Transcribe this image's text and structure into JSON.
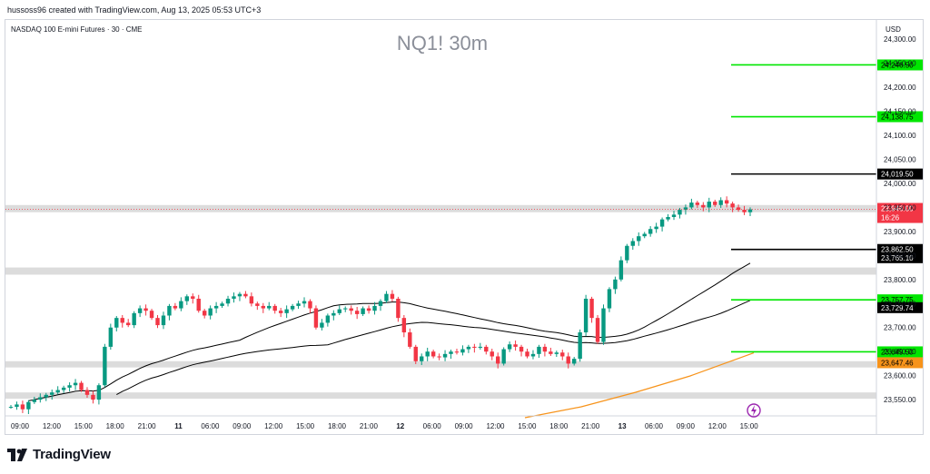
{
  "header": {
    "credit": "hussoss96 created with TradingView.com, Aug 13, 2025 05:53 UTC+3"
  },
  "footer": {
    "brand": "TradingView"
  },
  "colors": {
    "up": "#089981",
    "down": "#f23645",
    "green_line": "#00e600",
    "black_line": "#000000",
    "orange": "#f7931a",
    "zone": "#dcdcdc",
    "last_price_bg": "#f23645"
  },
  "chart_data": {
    "type": "candlestick",
    "symbol_description": "NASDAQ 100 E-mini Futures · 30 · CME",
    "watermark": "NQ1! 30m",
    "currency": "USD",
    "ylim": [
      23520,
      24340
    ],
    "price_ticks": [
      "24,300.00",
      "24,250.00",
      "24,200.00",
      "24,150.00",
      "24,100.00",
      "24,050.00",
      "24,000.00",
      "23,950.00",
      "23,900.00",
      "23,850.00",
      "23,800.00",
      "23,750.00",
      "23,700.00",
      "23,650.00",
      "23,600.00",
      "23,550.00"
    ],
    "time_ticks": [
      "09:00",
      "12:00",
      "15:00",
      "18:00",
      "21:00",
      "11",
      "06:00",
      "09:00",
      "12:00",
      "15:00",
      "18:00",
      "21:00",
      "12",
      "06:00",
      "09:00",
      "12:00",
      "15:00",
      "18:00",
      "21:00",
      "13",
      "06:00",
      "09:00",
      "12:00",
      "15:00"
    ],
    "zones": [
      [
        23955,
        23940
      ],
      [
        23825,
        23810
      ],
      [
        23630,
        23617
      ],
      [
        23565,
        23552
      ]
    ],
    "levels": [
      {
        "label": "24,246.50",
        "value": 24246.5,
        "style": "green"
      },
      {
        "label": "24,138.75",
        "value": 24138.75,
        "style": "green"
      },
      {
        "label": "24,019.50",
        "value": 24019.5,
        "style": "black"
      },
      {
        "label": "23,862.50",
        "value": 23862.5,
        "style": "black"
      },
      {
        "label": "23,757.75",
        "value": 23757.75,
        "style": "green"
      },
      {
        "label": "23,649.50",
        "value": 23649.5,
        "style": "green"
      }
    ],
    "axis_tags": [
      {
        "label": "23,765.10",
        "style": "black"
      },
      {
        "label": "23,729.74",
        "style": "black"
      },
      {
        "label": "23,647.46",
        "style": "orange"
      }
    ],
    "last_price": {
      "value": 23946.0,
      "label": "23,946.00",
      "countdown": "16:26"
    },
    "close_series": [
      23535,
      23540,
      23530,
      23545,
      23550,
      23555,
      23560,
      23565,
      23570,
      23575,
      23580,
      23585,
      23570,
      23560,
      23550,
      23580,
      23660,
      23700,
      23720,
      23710,
      23705,
      23730,
      23740,
      23735,
      23720,
      23705,
      23725,
      23745,
      23740,
      23755,
      23765,
      23760,
      23735,
      23725,
      23740,
      23745,
      23750,
      23760,
      23765,
      23770,
      23765,
      23750,
      23745,
      23740,
      23745,
      23735,
      23730,
      23738,
      23745,
      23750,
      23755,
      23740,
      23700,
      23710,
      23725,
      23730,
      23738,
      23740,
      23735,
      23728,
      23740,
      23735,
      23745,
      23755,
      23770,
      23760,
      23720,
      23690,
      23660,
      23630,
      23640,
      23650,
      23640,
      23638,
      23645,
      23650,
      23648,
      23655,
      23660,
      23658,
      23660,
      23650,
      23640,
      23625,
      23655,
      23665,
      23660,
      23650,
      23640,
      23645,
      23660,
      23650,
      23645,
      23648,
      23640,
      23625,
      23635,
      23690,
      23760,
      23720,
      23670,
      23740,
      23780,
      23800,
      23840,
      23870,
      23880,
      23890,
      23895,
      23905,
      23910,
      23925,
      23930,
      23935,
      23945,
      23950,
      23960,
      23955,
      23950,
      23962,
      23955,
      23965,
      23958,
      23950,
      23945,
      23940,
      23946
    ]
  }
}
